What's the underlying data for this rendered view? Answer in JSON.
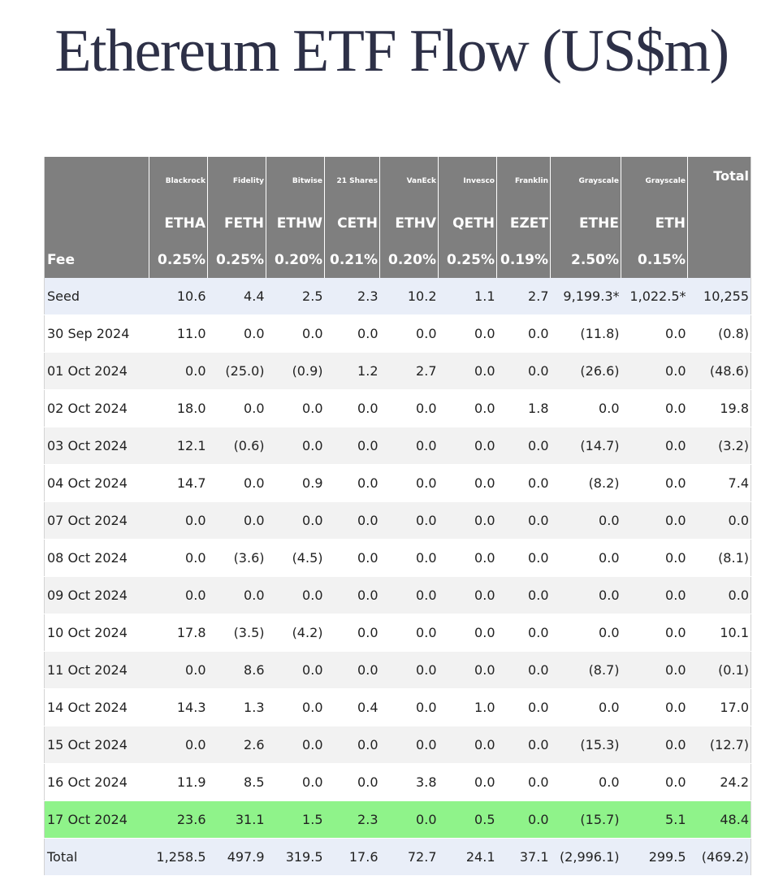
{
  "title": "Ethereum ETF Flow (US$m)",
  "header": {
    "issuer_first": "",
    "issuers": [
      "Blackrock",
      "Fidelity",
      "Bitwise",
      "21 Shares",
      "VanEck",
      "Invesco",
      "Franklin",
      "Grayscale",
      "Grayscale"
    ],
    "total_label": "Total",
    "ticker_first": "",
    "tickers": [
      "ETHA",
      "FETH",
      "ETHW",
      "CETH",
      "ETHV",
      "QETH",
      "EZET",
      "ETHE",
      "ETH"
    ],
    "ticker_last": "",
    "fee_label": "Fee",
    "fees": [
      "0.25%",
      "0.25%",
      "0.20%",
      "0.21%",
      "0.20%",
      "0.25%",
      "0.19%",
      "2.50%",
      "0.15%"
    ],
    "fee_last": ""
  },
  "rows": [
    {
      "label": "Seed",
      "values": [
        "10.6",
        "4.4",
        "2.5",
        "2.3",
        "10.2",
        "1.1",
        "2.7",
        "9,199.3*",
        "1,022.5*",
        "10,255"
      ]
    },
    {
      "label": "30 Sep 2024",
      "values": [
        "11.0",
        "0.0",
        "0.0",
        "0.0",
        "0.0",
        "0.0",
        "0.0",
        "(11.8)",
        "0.0",
        "(0.8)"
      ]
    },
    {
      "label": "01 Oct 2024",
      "values": [
        "0.0",
        "(25.0)",
        "(0.9)",
        "1.2",
        "2.7",
        "0.0",
        "0.0",
        "(26.6)",
        "0.0",
        "(48.6)"
      ]
    },
    {
      "label": "02 Oct 2024",
      "values": [
        "18.0",
        "0.0",
        "0.0",
        "0.0",
        "0.0",
        "0.0",
        "1.8",
        "0.0",
        "0.0",
        "19.8"
      ]
    },
    {
      "label": "03 Oct 2024",
      "values": [
        "12.1",
        "(0.6)",
        "0.0",
        "0.0",
        "0.0",
        "0.0",
        "0.0",
        "(14.7)",
        "0.0",
        "(3.2)"
      ]
    },
    {
      "label": "04 Oct 2024",
      "values": [
        "14.7",
        "0.0",
        "0.9",
        "0.0",
        "0.0",
        "0.0",
        "0.0",
        "(8.2)",
        "0.0",
        "7.4"
      ]
    },
    {
      "label": "07 Oct 2024",
      "values": [
        "0.0",
        "0.0",
        "0.0",
        "0.0",
        "0.0",
        "0.0",
        "0.0",
        "0.0",
        "0.0",
        "0.0"
      ]
    },
    {
      "label": "08 Oct 2024",
      "values": [
        "0.0",
        "(3.6)",
        "(4.5)",
        "0.0",
        "0.0",
        "0.0",
        "0.0",
        "0.0",
        "0.0",
        "(8.1)"
      ]
    },
    {
      "label": "09 Oct 2024",
      "values": [
        "0.0",
        "0.0",
        "0.0",
        "0.0",
        "0.0",
        "0.0",
        "0.0",
        "0.0",
        "0.0",
        "0.0"
      ]
    },
    {
      "label": "10 Oct 2024",
      "values": [
        "17.8",
        "(3.5)",
        "(4.2)",
        "0.0",
        "0.0",
        "0.0",
        "0.0",
        "0.0",
        "0.0",
        "10.1"
      ]
    },
    {
      "label": "11 Oct 2024",
      "values": [
        "0.0",
        "8.6",
        "0.0",
        "0.0",
        "0.0",
        "0.0",
        "0.0",
        "(8.7)",
        "0.0",
        "(0.1)"
      ]
    },
    {
      "label": "14 Oct 2024",
      "values": [
        "14.3",
        "1.3",
        "0.0",
        "0.4",
        "0.0",
        "1.0",
        "0.0",
        "0.0",
        "0.0",
        "17.0"
      ]
    },
    {
      "label": "15 Oct 2024",
      "values": [
        "0.0",
        "2.6",
        "0.0",
        "0.0",
        "0.0",
        "0.0",
        "0.0",
        "(15.3)",
        "0.0",
        "(12.7)"
      ]
    },
    {
      "label": "16 Oct 2024",
      "values": [
        "11.9",
        "8.5",
        "0.0",
        "0.0",
        "3.8",
        "0.0",
        "0.0",
        "0.0",
        "0.0",
        "24.2"
      ]
    },
    {
      "label": "17 Oct 2024",
      "values": [
        "23.6",
        "31.1",
        "1.5",
        "2.3",
        "0.0",
        "0.5",
        "0.0",
        "(15.7)",
        "5.1",
        "48.4"
      ]
    },
    {
      "label": "Total",
      "values": [
        "1,258.5",
        "497.9",
        "319.5",
        "17.6",
        "72.7",
        "24.1",
        "37.1",
        "(2,996.1)",
        "299.5",
        "(469.2)"
      ]
    }
  ],
  "colors": {
    "title_text": "#2d3047",
    "header_bg": "#7f7f7f",
    "header_text": "#ffffff",
    "row_shade": "#f2f2f2",
    "seed_total_bg": "#e9eef8",
    "latest_row_bg": "#8ff38a",
    "negative_text": "#e62121"
  }
}
